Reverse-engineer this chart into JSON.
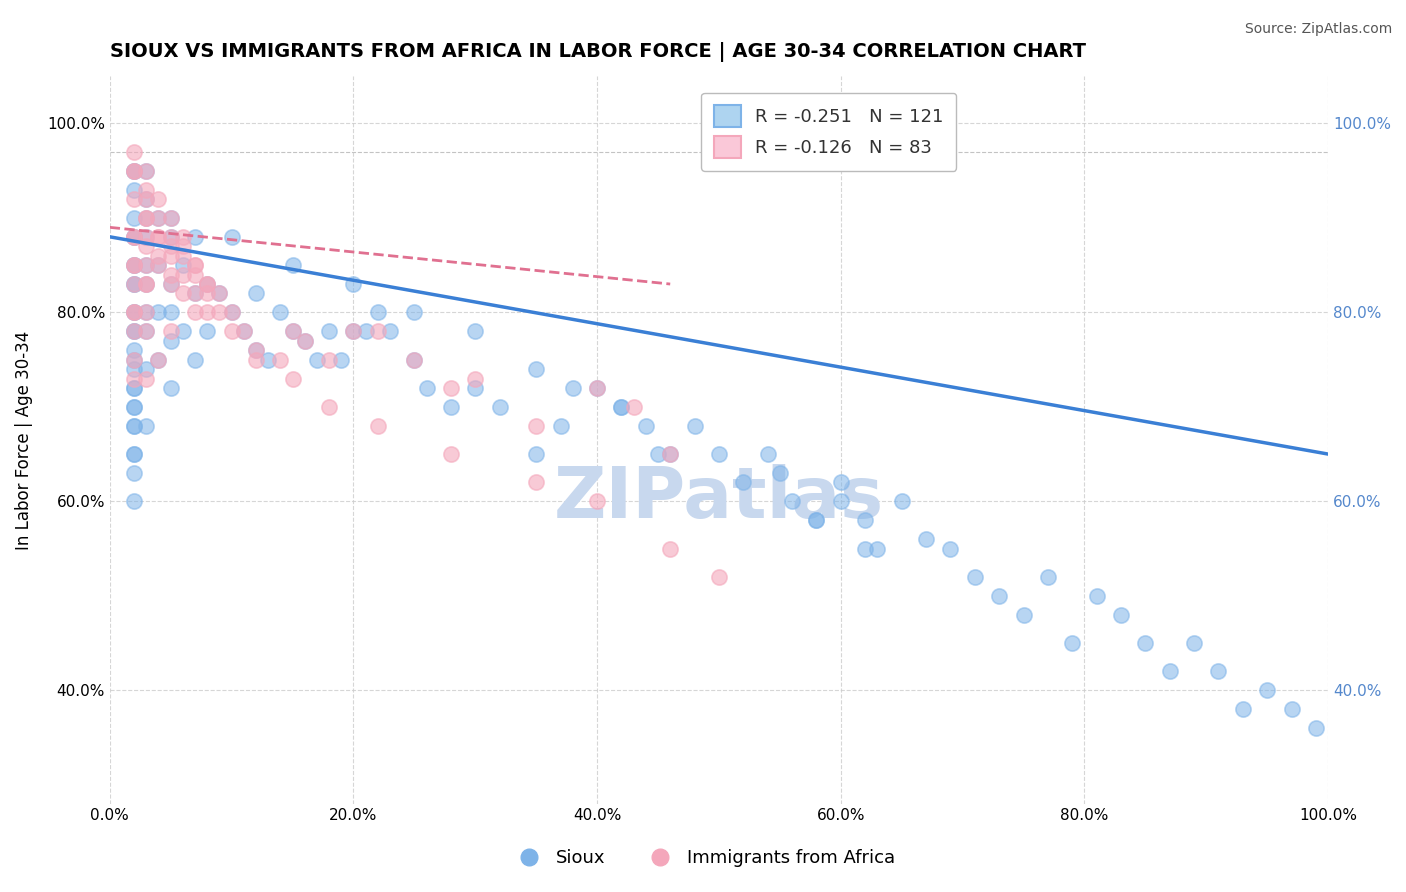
{
  "title": "SIOUX VS IMMIGRANTS FROM AFRICA IN LABOR FORCE | AGE 30-34 CORRELATION CHART",
  "source_text": "Source: ZipAtlas.com",
  "xlabel_bottom": "",
  "ylabel": "In Labor Force | Age 30-34",
  "x_tick_labels": [
    "0.0%",
    "20.0%",
    "40.0%",
    "60.0%",
    "80.0%",
    "100.0%"
  ],
  "x_tick_vals": [
    0,
    20,
    40,
    60,
    80,
    100
  ],
  "y_tick_labels": [
    "40.0%",
    "60.0%",
    "80.0%",
    "100.0%"
  ],
  "y_tick_vals": [
    40,
    60,
    80,
    100
  ],
  "xlim": [
    0,
    100
  ],
  "ylim": [
    28,
    105
  ],
  "legend_label_blue": "Sioux",
  "legend_label_pink": "Immigrants from Africa",
  "R_blue": -0.251,
  "N_blue": 121,
  "R_pink": -0.126,
  "N_pink": 83,
  "blue_color": "#7EB3E8",
  "pink_color": "#F4A7BB",
  "trend_blue_color": "#3A7FD5",
  "trend_pink_color": "#E07090",
  "background_color": "#FFFFFF",
  "watermark_text": "ZIPatlas",
  "watermark_color": "#C8D8EE",
  "blue_scatter_x": [
    2,
    2,
    2,
    2,
    2,
    2,
    2,
    2,
    2,
    2,
    2,
    2,
    2,
    3,
    3,
    3,
    3,
    3,
    3,
    3,
    3,
    3,
    4,
    4,
    4,
    4,
    5,
    5,
    5,
    5,
    5,
    6,
    6,
    7,
    7,
    7,
    8,
    8,
    9,
    10,
    11,
    12,
    12,
    13,
    14,
    15,
    16,
    17,
    18,
    19,
    20,
    21,
    22,
    23,
    25,
    26,
    28,
    30,
    32,
    35,
    37,
    40,
    42,
    44,
    46,
    48,
    50,
    52,
    54,
    56,
    58,
    60,
    62,
    63,
    65,
    67,
    69,
    71,
    73,
    75,
    77,
    79,
    81,
    83,
    85,
    87,
    89,
    91,
    93,
    95,
    97,
    99,
    55,
    58,
    60,
    62,
    45,
    42,
    38,
    35,
    30,
    25,
    20,
    15,
    10,
    5,
    3,
    2,
    2,
    2,
    2,
    2,
    2,
    2,
    2,
    2,
    2,
    2,
    2,
    2,
    2
  ],
  "blue_scatter_y": [
    95,
    90,
    88,
    85,
    83,
    80,
    78,
    76,
    74,
    72,
    70,
    68,
    65,
    95,
    90,
    88,
    85,
    83,
    80,
    78,
    74,
    68,
    90,
    85,
    80,
    75,
    88,
    83,
    80,
    77,
    72,
    85,
    78,
    88,
    82,
    75,
    83,
    78,
    82,
    80,
    78,
    76,
    82,
    75,
    80,
    78,
    77,
    75,
    78,
    75,
    78,
    78,
    80,
    78,
    75,
    72,
    70,
    72,
    70,
    65,
    68,
    72,
    70,
    68,
    65,
    68,
    65,
    62,
    65,
    60,
    58,
    62,
    58,
    55,
    60,
    56,
    55,
    52,
    50,
    48,
    52,
    45,
    50,
    48,
    45,
    42,
    45,
    42,
    38,
    40,
    38,
    36,
    63,
    58,
    60,
    55,
    65,
    70,
    72,
    74,
    78,
    80,
    83,
    85,
    88,
    90,
    92,
    95,
    93,
    88,
    85,
    83,
    80,
    78,
    75,
    72,
    70,
    68,
    65,
    63,
    60
  ],
  "pink_scatter_x": [
    2,
    2,
    2,
    2,
    2,
    2,
    2,
    2,
    2,
    3,
    3,
    3,
    3,
    3,
    3,
    3,
    3,
    4,
    4,
    4,
    5,
    5,
    5,
    6,
    6,
    7,
    7,
    8,
    9,
    10,
    11,
    12,
    14,
    15,
    16,
    18,
    20,
    22,
    25,
    28,
    30,
    35,
    40,
    43,
    46,
    5,
    6,
    7,
    8,
    3,
    4,
    5,
    6,
    7,
    8,
    2,
    2,
    3,
    3,
    4,
    4,
    5,
    6,
    7,
    8,
    9,
    10,
    12,
    15,
    18,
    22,
    28,
    35,
    40,
    46,
    50,
    2,
    2,
    2,
    3,
    3,
    4,
    5
  ],
  "pink_scatter_y": [
    95,
    92,
    88,
    85,
    83,
    80,
    78,
    75,
    73,
    95,
    90,
    88,
    85,
    83,
    80,
    78,
    73,
    90,
    85,
    75,
    88,
    83,
    78,
    88,
    82,
    85,
    80,
    83,
    82,
    80,
    78,
    76,
    75,
    78,
    77,
    75,
    78,
    78,
    75,
    72,
    73,
    68,
    72,
    70,
    65,
    90,
    87,
    85,
    83,
    92,
    88,
    86,
    84,
    82,
    80,
    97,
    95,
    93,
    90,
    92,
    88,
    87,
    86,
    84,
    82,
    80,
    78,
    75,
    73,
    70,
    68,
    65,
    62,
    60,
    55,
    52,
    88,
    85,
    80,
    87,
    83,
    86,
    84
  ],
  "blue_trend_x": [
    0,
    100
  ],
  "blue_trend_y": [
    88,
    65
  ],
  "pink_trend_x": [
    0,
    46
  ],
  "pink_trend_y": [
    89,
    83
  ]
}
